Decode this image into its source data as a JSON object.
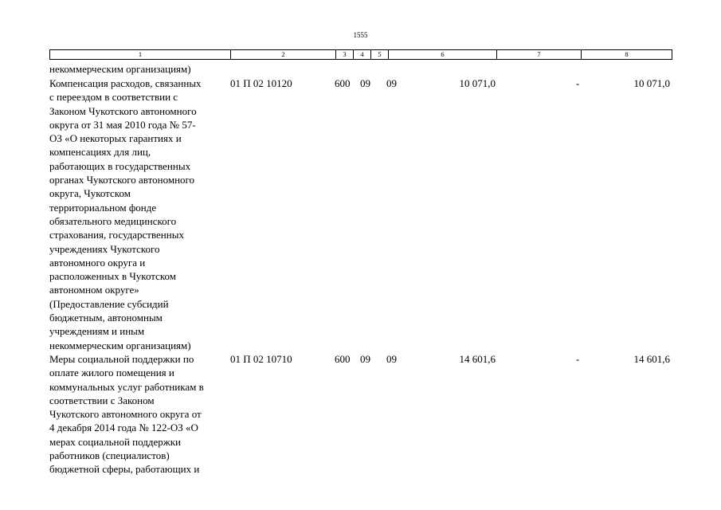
{
  "page_number": "1555",
  "header_columns": [
    "1",
    "2",
    "3",
    "4",
    "5",
    "6",
    "7",
    "8"
  ],
  "continuation_line": "некоммерческим организациям)",
  "rows": [
    {
      "description_lines": [
        "Компенсация расходов, связанных",
        "с переездом в соответствии с",
        "Законом Чукотского автономного",
        "округа от 31 мая 2010 года № 57-",
        "ОЗ «О некоторых гарантиях и",
        "компенсациях для лиц,",
        "работающих в государственных",
        "органах Чукотского автономного",
        "округа, Чукотском",
        "территориальном фонде",
        "обязательного медицинского",
        "страхования, государственных",
        "учреждениях Чукотского",
        "автономного округа и",
        "расположенных в Чукотском",
        "автономном округе»",
        "(Предоставление субсидий",
        "бюджетным, автономным",
        "учреждениям и иным",
        "некоммерческим организациям)"
      ],
      "code": "01 П 02 10120",
      "vr": "600",
      "rz": "09",
      "pr": "09",
      "amount": "10 071,0",
      "change": "-",
      "total": "10 071,0"
    },
    {
      "description_lines": [
        "Меры социальной поддержки по",
        "оплате жилого помещения и",
        "коммунальных услуг работникам в",
        "соответствии с Законом",
        "Чукотского автономного округа от",
        "4 декабря 2014 года № 122-ОЗ «О",
        "мерах социальной поддержки",
        "работников (специалистов)",
        "бюджетной сферы, работающих и"
      ],
      "code": "01 П 02 10710",
      "vr": "600",
      "rz": "09",
      "pr": "09",
      "amount": "14 601,6",
      "change": "-",
      "total": "14 601,6"
    }
  ]
}
